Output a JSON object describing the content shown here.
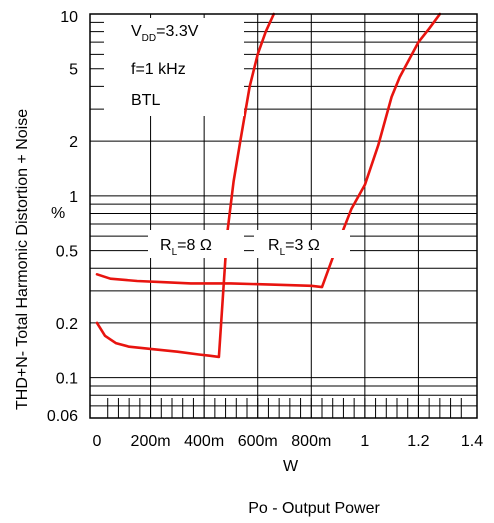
{
  "chart_data": {
    "type": "line",
    "y_scale": "log",
    "xlim": [
      0,
      1.4
    ],
    "ylim": [
      0.06,
      10
    ],
    "x_ticks": [
      {
        "v": 0,
        "label": "0"
      },
      {
        "v": 0.2,
        "label": "200m"
      },
      {
        "v": 0.4,
        "label": "400m"
      },
      {
        "v": 0.6,
        "label": "600m"
      },
      {
        "v": 0.8,
        "label": "800m"
      },
      {
        "v": 1.0,
        "label": "1"
      },
      {
        "v": 1.2,
        "label": "1.2"
      },
      {
        "v": 1.4,
        "label": "1.4"
      }
    ],
    "y_ticks": [
      {
        "v": 0.06,
        "label": "0.06"
      },
      {
        "v": 0.1,
        "label": "0.1"
      },
      {
        "v": 0.2,
        "label": "0.2"
      },
      {
        "v": 0.5,
        "label": "0.5"
      },
      {
        "v": 1,
        "label": "1"
      },
      {
        "v": 2,
        "label": "2"
      },
      {
        "v": 5,
        "label": "5"
      },
      {
        "v": 10,
        "label": "10"
      }
    ],
    "ylabel": "THD+N- Total Harmonic Distortion + Noise",
    "yunit": "%",
    "xunit": "W",
    "xlabel": "Po - Output Power",
    "annotations": {
      "vdd_prefix": "V",
      "vdd_sub": "DD",
      "vdd_value": "=3.3V",
      "freq": "f=1 kHz",
      "mode": "BTL"
    },
    "curve_labels": [
      {
        "prefix": "R",
        "sub": "L",
        "value": "=8 Ω"
      },
      {
        "prefix": "R",
        "sub": "L",
        "value": "=3 Ω"
      }
    ],
    "series": [
      {
        "color": "#e8140f",
        "points": [
          [
            0.0,
            0.37
          ],
          [
            0.05,
            0.35
          ],
          [
            0.15,
            0.34
          ],
          [
            0.25,
            0.335
          ],
          [
            0.35,
            0.33
          ],
          [
            0.5,
            0.33
          ],
          [
            0.65,
            0.325
          ],
          [
            0.8,
            0.32
          ],
          [
            0.84,
            0.315
          ],
          [
            0.9,
            0.55
          ],
          [
            0.95,
            0.85
          ],
          [
            1.0,
            1.15
          ],
          [
            1.05,
            1.9
          ],
          [
            1.1,
            3.5
          ],
          [
            1.13,
            4.5
          ],
          [
            1.2,
            7.0
          ],
          [
            1.24,
            8.3
          ],
          [
            1.28,
            10.0
          ]
        ]
      },
      {
        "color": "#e8140f",
        "points": [
          [
            0.0,
            0.2
          ],
          [
            0.03,
            0.17
          ],
          [
            0.07,
            0.155
          ],
          [
            0.12,
            0.148
          ],
          [
            0.2,
            0.144
          ],
          [
            0.3,
            0.139
          ],
          [
            0.38,
            0.134
          ],
          [
            0.42,
            0.132
          ],
          [
            0.455,
            0.13
          ],
          [
            0.485,
            0.6
          ],
          [
            0.51,
            1.2
          ],
          [
            0.535,
            2.0
          ],
          [
            0.57,
            4.0
          ],
          [
            0.6,
            6.0
          ],
          [
            0.63,
            8.0
          ],
          [
            0.66,
            10.0
          ]
        ]
      }
    ],
    "grid": true,
    "legend": "none"
  }
}
